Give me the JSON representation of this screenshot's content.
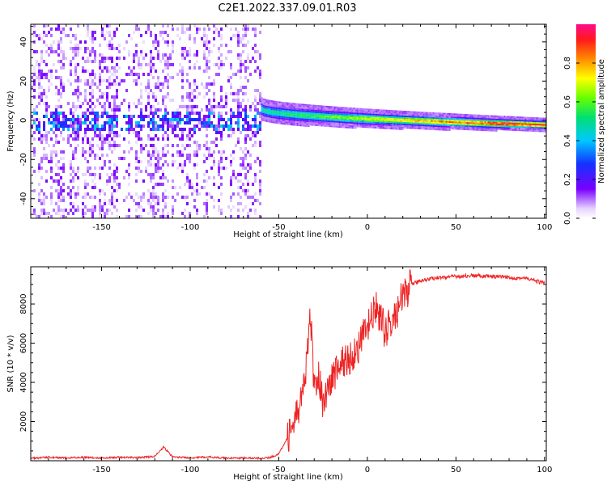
{
  "figure": {
    "title": "C2E1.2022.337.09.01.R03"
  },
  "chart_data": [
    {
      "type": "heatmap",
      "xlabel": "Height of straight line (km)",
      "ylabel": "Frequency (Hz)",
      "xlim": [
        -190,
        101
      ],
      "ylim": [
        -50,
        49
      ],
      "xticks": [
        -150,
        -100,
        -50,
        0,
        50,
        100
      ],
      "yticks": [
        -40,
        -20,
        0,
        20,
        40
      ],
      "colorbar": {
        "label": "Normalized spectral amplitude",
        "range": [
          0.0,
          1.0
        ],
        "ticks": [
          0.0,
          0.2,
          0.4,
          0.6,
          0.8
        ],
        "colormap": "rainbow (white-purple-blue-cyan-green-yellow-orange-red-magenta)"
      },
      "features": [
        {
          "x_range": [
            -190,
            -60
          ],
          "description": "noisy broadband region",
          "center_hz": 0,
          "amplitude": [
            0.1,
            0.4
          ]
        },
        {
          "x_range": [
            -60,
            100
          ],
          "description": "narrow carrier line",
          "freq_hz_start": 6,
          "freq_hz_end": -2,
          "amplitude": [
            0.5,
            1.0
          ]
        }
      ]
    },
    {
      "type": "line",
      "xlabel": "Height of straight line (km)",
      "ylabel": "SNR (10 * v/v)",
      "xlim": [
        -190,
        101
      ],
      "ylim": [
        0,
        9900
      ],
      "xticks": [
        -150,
        -100,
        -50,
        0,
        50,
        100
      ],
      "yticks": [
        2000,
        4000,
        6000,
        8000
      ],
      "series": [
        {
          "color": "#ee2222",
          "x": [
            -190,
            -180,
            -170,
            -160,
            -150,
            -140,
            -130,
            -120,
            -115,
            -110,
            -100,
            -90,
            -80,
            -70,
            -60,
            -55,
            -50,
            -45,
            -40,
            -35,
            -32,
            -30,
            -28,
            -25,
            -20,
            -15,
            -10,
            -5,
            0,
            5,
            10,
            15,
            20,
            25,
            30,
            40,
            50,
            60,
            70,
            80,
            90,
            100
          ],
          "y": [
            120,
            180,
            140,
            180,
            140,
            180,
            160,
            220,
            700,
            200,
            150,
            190,
            140,
            140,
            130,
            160,
            350,
            1200,
            2200,
            4200,
            7500,
            3500,
            4500,
            3000,
            4200,
            5000,
            5200,
            5800,
            6800,
            7800,
            6600,
            7200,
            8400,
            9000,
            9200,
            9350,
            9400,
            9450,
            9400,
            9350,
            9300,
            9050
          ]
        }
      ]
    }
  ]
}
